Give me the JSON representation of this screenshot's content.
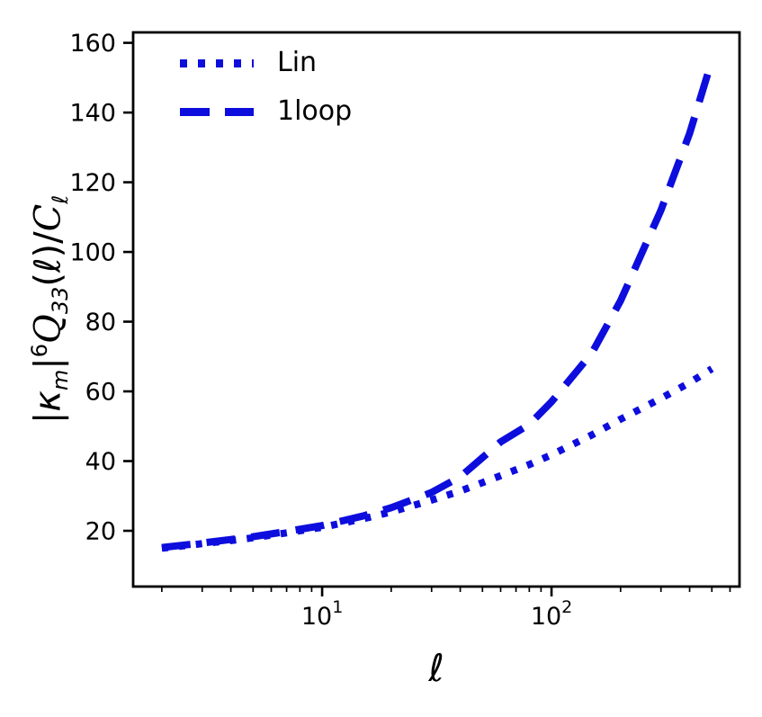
{
  "figure": {
    "background": "#ffffff",
    "axis_color": "#000000"
  },
  "chart_data": {
    "type": "line",
    "title": "",
    "xlabel": "ℓ",
    "ylabel": "|κ_m|^6 Q_33(ℓ)/C_ℓ",
    "ylabel_parts": [
      {
        "text": "|",
        "style": "normal"
      },
      {
        "text": "κ",
        "style": "italic"
      },
      {
        "text": "m",
        "style": "sub"
      },
      {
        "text": "|",
        "style": "normal"
      },
      {
        "text": "6",
        "style": "sup"
      },
      {
        "text": "Q",
        "style": "script"
      },
      {
        "text": "33",
        "style": "sub"
      },
      {
        "text": "(",
        "style": "normal"
      },
      {
        "text": "ℓ",
        "style": "italic"
      },
      {
        "text": ")/",
        "style": "normal"
      },
      {
        "text": "C",
        "style": "script"
      },
      {
        "text": "ℓ",
        "style": "sub"
      }
    ],
    "x_scale": "log",
    "y_scale": "linear",
    "xlim": [
      1.5,
      660
    ],
    "ylim": [
      4,
      163
    ],
    "grid": false,
    "legend_position": "upper-left",
    "x_major_ticks": [
      {
        "value": 10,
        "base": "10",
        "exp": "1"
      },
      {
        "value": 100,
        "base": "10",
        "exp": "2"
      }
    ],
    "x_minor_ticks": [
      2,
      3,
      4,
      5,
      6,
      7,
      8,
      9,
      20,
      30,
      40,
      50,
      60,
      70,
      80,
      90,
      200,
      300,
      400,
      500,
      600
    ],
    "y_ticks": [
      20,
      40,
      60,
      80,
      100,
      120,
      140,
      160
    ],
    "series": [
      {
        "name": "Lin",
        "style": "dotted",
        "color": "#0d0ddd",
        "x": [
          2,
          3,
          4,
          5,
          7,
          10,
          15,
          20,
          30,
          40,
          50,
          60,
          80,
          100,
          150,
          200,
          300,
          400,
          500
        ],
        "y": [
          15.0,
          16.3,
          17.2,
          18.0,
          19.4,
          21.0,
          23.4,
          25.4,
          28.8,
          31.4,
          33.8,
          35.8,
          39.0,
          41.8,
          47.5,
          52.0,
          58.0,
          62.5,
          66.5
        ]
      },
      {
        "name": "1loop",
        "style": "dashed",
        "color": "#0d0ddd",
        "x": [
          2,
          3,
          4,
          5,
          7,
          10,
          15,
          20,
          30,
          40,
          50,
          60,
          80,
          100,
          150,
          200,
          300,
          400,
          500
        ],
        "y": [
          15.2,
          16.5,
          17.5,
          18.3,
          19.8,
          21.5,
          24.2,
          26.6,
          31.0,
          35.5,
          41.0,
          45.5,
          50.5,
          57.0,
          71.0,
          86.0,
          112.0,
          134.0,
          155.0
        ]
      }
    ]
  }
}
